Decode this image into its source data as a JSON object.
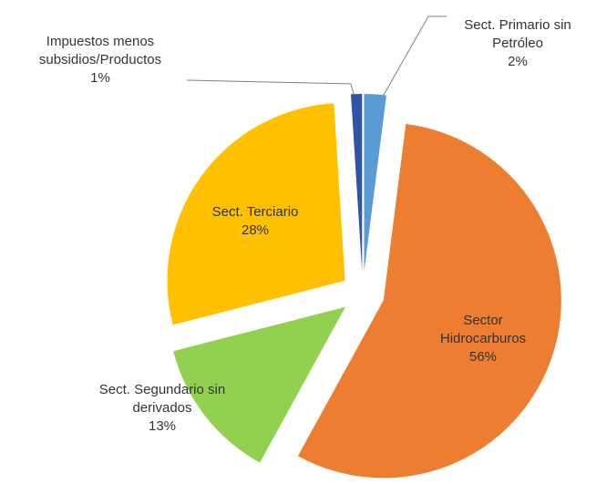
{
  "chart_data": {
    "type": "pie",
    "categories": [
      "Sect. Primario sin Petróleo",
      "Sector Hidrocarburos",
      "Sect. Segundario sin derivados",
      "Sect. Terciario",
      "Impuestos menos subsidios/Productos"
    ],
    "values": [
      2,
      56,
      13,
      28,
      1
    ],
    "value_labels": [
      "2%",
      "56%",
      "13%",
      "28%",
      "1%"
    ],
    "colors": [
      "#5b9bd5",
      "#ed7d31",
      "#92d050",
      "#ffc000",
      "#2f55a4"
    ],
    "exploded": true
  }
}
